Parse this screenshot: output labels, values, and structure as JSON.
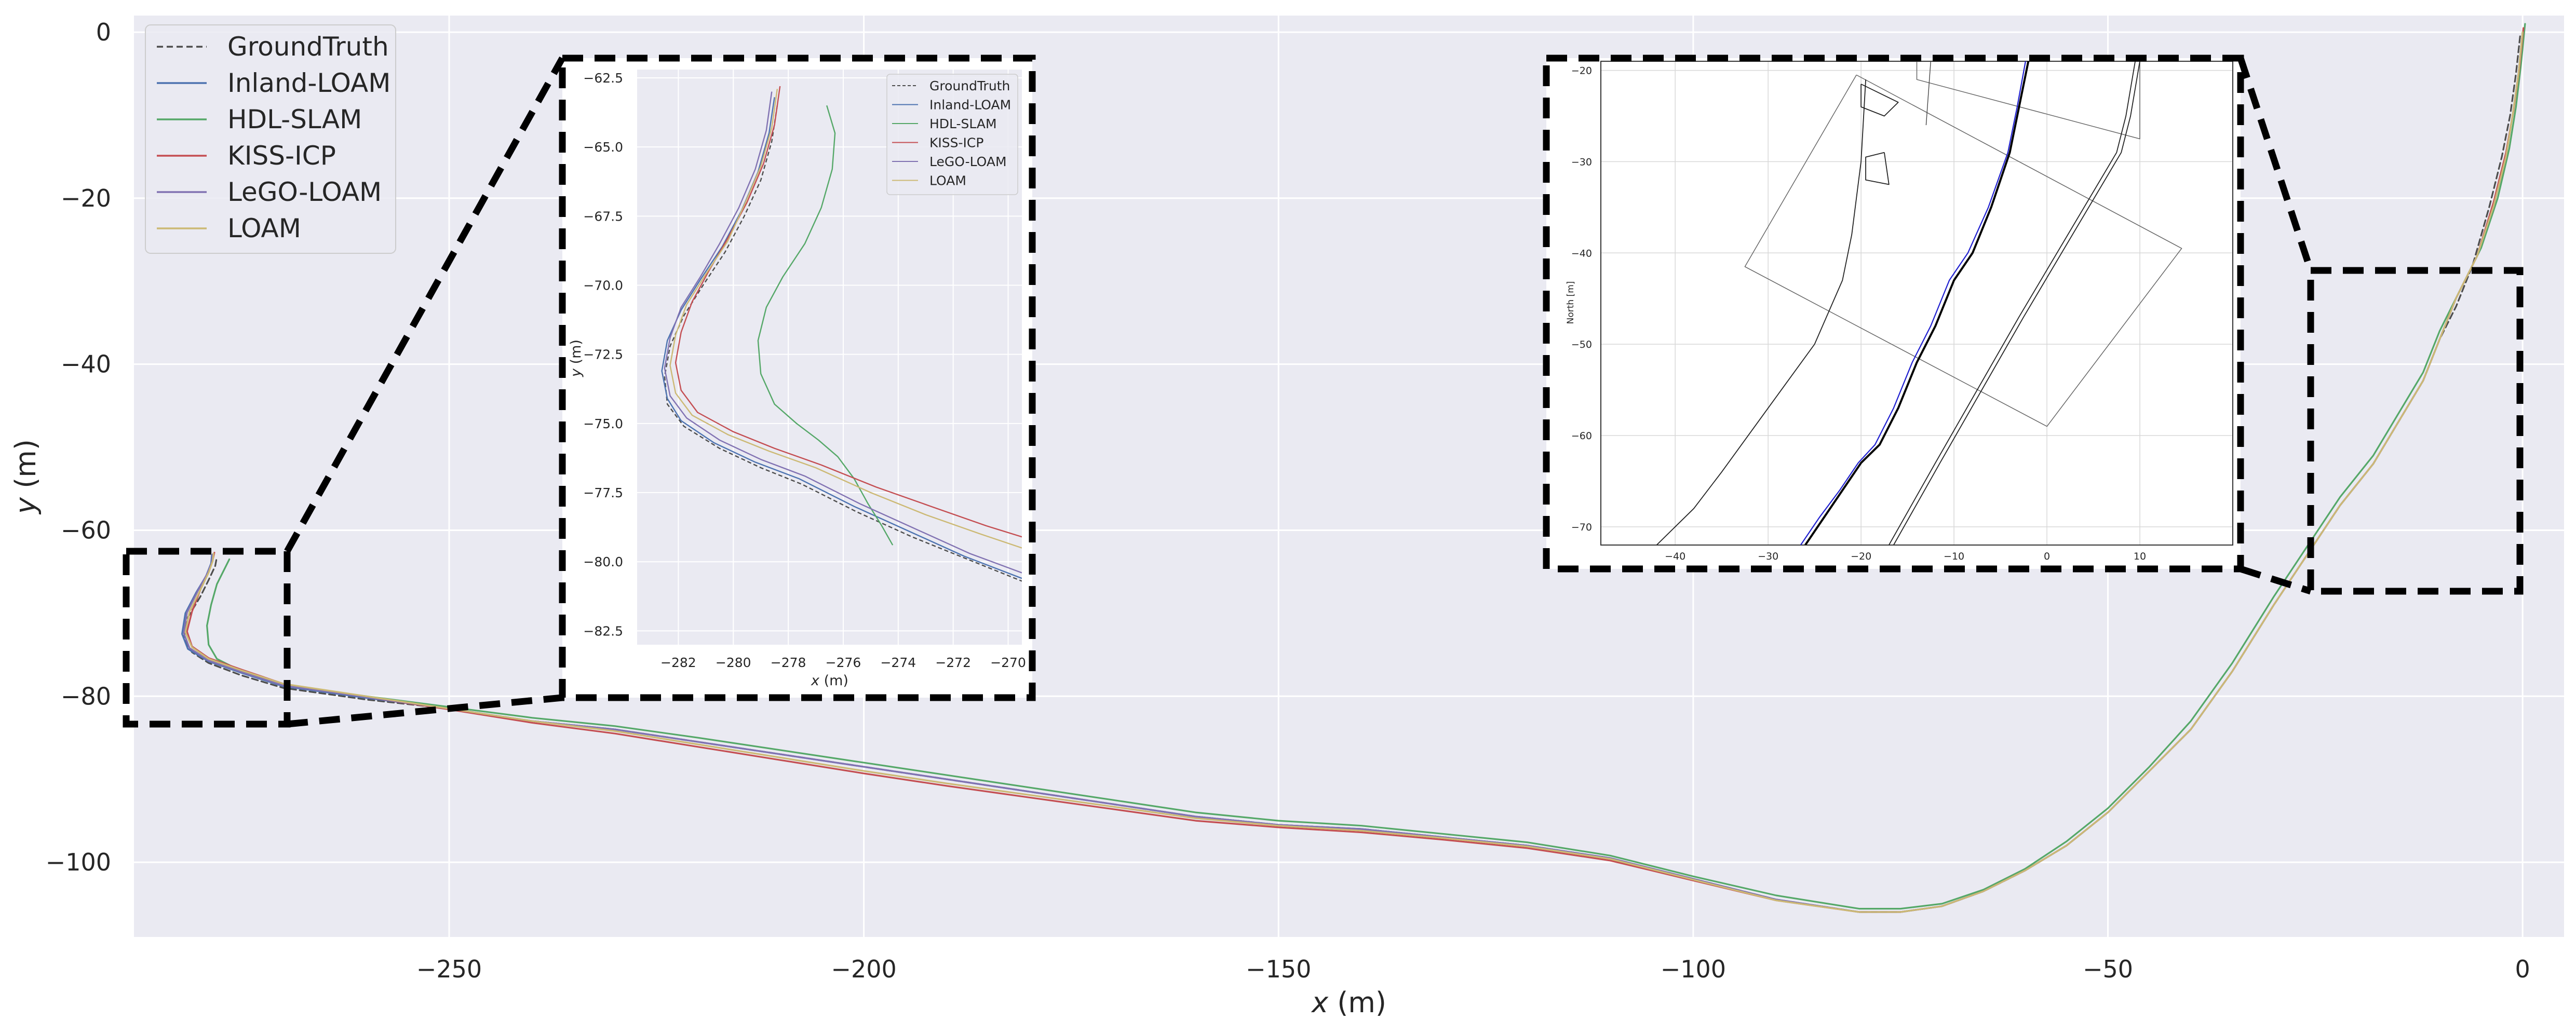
{
  "chart_data": {
    "type": "line",
    "xlabel": "x (m)",
    "ylabel": "y (m)",
    "xlim": [
      -288,
      5
    ],
    "ylim": [
      -109,
      2
    ],
    "grid": true,
    "legend_position": "top-left",
    "xticks": [
      -250,
      -200,
      -150,
      -100,
      -50,
      0
    ],
    "xtick_labels": [
      "−250",
      "−200",
      "−150",
      "−100",
      "−50",
      "0"
    ],
    "yticks": [
      0,
      -20,
      -40,
      -60,
      -80,
      -100
    ],
    "ytick_labels": [
      "0",
      "−20",
      "−40",
      "−60",
      "−80",
      "−100"
    ],
    "series": [
      {
        "name": "GroundTruth",
        "color": "#4d4d4d",
        "dashed": true,
        "x": [
          -0.3,
          -0.8,
          -1.5,
          -2.5,
          -4,
          -6,
          -8,
          -10,
          -12,
          -15,
          -18,
          -22,
          -26,
          -30,
          -35,
          -40,
          -45,
          -50,
          -55,
          -60,
          -65,
          -70,
          -75,
          -80,
          -90,
          -100,
          -110,
          -120,
          -130,
          -140,
          -150,
          -160,
          -170,
          -180,
          -190,
          -200,
          -210,
          -220,
          -230,
          -240,
          -250,
          -260,
          -270,
          -275,
          -279,
          -281,
          -282,
          -281.5,
          -280,
          -279,
          -278.2,
          -278
        ],
        "y": [
          -0.5,
          -5,
          -10,
          -15,
          -21,
          -28,
          -33,
          -37,
          -42,
          -47,
          -52,
          -57,
          -63,
          -69,
          -77,
          -84,
          -89,
          -94,
          -98,
          -101,
          -103.5,
          -105.3,
          -106,
          -106,
          -104.5,
          -102,
          -99.5,
          -98,
          -97,
          -96,
          -95.5,
          -94.5,
          -93,
          -91.5,
          -90,
          -88.5,
          -87,
          -85.5,
          -84,
          -83,
          -81.5,
          -80.4,
          -79,
          -77.5,
          -76,
          -74.7,
          -73,
          -70.5,
          -68,
          -66,
          -64.3,
          -63.2
        ]
      },
      {
        "name": "Inland-LOAM",
        "color": "#4c72b0",
        "x": [
          0,
          -0.5,
          -1.2,
          -2,
          -3.5,
          -5.5,
          -8,
          -10,
          -12,
          -15,
          -18,
          -22,
          -26,
          -30,
          -35,
          -40,
          -45,
          -50,
          -55,
          -60,
          -65,
          -70,
          -75,
          -80,
          -90,
          -100,
          -110,
          -120,
          -130,
          -140,
          -150,
          -160,
          -170,
          -180,
          -190,
          -200,
          -210,
          -220,
          -230,
          -240,
          -250,
          -260,
          -270,
          -275,
          -279,
          -281.5,
          -282.2,
          -281.8,
          -280.5,
          -279.3,
          -278.7,
          -278.6
        ],
        "y": [
          0,
          -5,
          -10,
          -15,
          -21,
          -27,
          -32,
          -37,
          -42,
          -47,
          -52,
          -57,
          -63,
          -69,
          -77,
          -84,
          -89,
          -94,
          -98,
          -101,
          -103.5,
          -105.3,
          -106,
          -106,
          -104.5,
          -102,
          -99.5,
          -98,
          -97,
          -96,
          -95.5,
          -94.5,
          -93,
          -91.5,
          -90,
          -88.5,
          -87,
          -85.5,
          -84,
          -83,
          -81.5,
          -80.2,
          -78.8,
          -77.2,
          -75.8,
          -74.3,
          -72.5,
          -70,
          -67.5,
          -65.5,
          -64,
          -63
        ]
      },
      {
        "name": "HDL-SLAM",
        "color": "#55a868",
        "x": [
          0.3,
          -0.2,
          -0.8,
          -1.6,
          -3,
          -5,
          -7.5,
          -10,
          -12,
          -15,
          -18,
          -22,
          -26,
          -30,
          -35,
          -40,
          -45,
          -50,
          -55,
          -60,
          -65,
          -70,
          -75,
          -80,
          -90,
          -100,
          -110,
          -120,
          -130,
          -140,
          -150,
          -160,
          -170,
          -180,
          -190,
          -200,
          -210,
          -220,
          -230,
          -240,
          -250,
          -260,
          -270,
          -275,
          -278,
          -279,
          -279.2,
          -278.7,
          -278,
          -277,
          -276.5
        ],
        "y": [
          1,
          -4,
          -9,
          -14,
          -20,
          -26,
          -31,
          -36,
          -41,
          -46,
          -51,
          -56,
          -62,
          -68,
          -76,
          -83,
          -88.5,
          -93.5,
          -97.5,
          -100.8,
          -103.3,
          -105,
          -105.6,
          -105.6,
          -104,
          -101.7,
          -99.2,
          -97.6,
          -96.6,
          -95.6,
          -95,
          -94,
          -92.5,
          -91,
          -89.5,
          -88,
          -86.5,
          -85,
          -83.6,
          -82.6,
          -81.3,
          -80,
          -78.6,
          -77,
          -75.5,
          -73.8,
          -71.5,
          -69,
          -66.5,
          -64.5,
          -63.5
        ]
      },
      {
        "name": "KISS-ICP",
        "color": "#c44e52",
        "x": [
          0.1,
          -0.4,
          -1.1,
          -2,
          -3.5,
          -5.5,
          -8,
          -10,
          -12,
          -15,
          -18,
          -22,
          -26,
          -30,
          -35,
          -40,
          -45,
          -50,
          -55,
          -60,
          -65,
          -70,
          -75,
          -80,
          -90,
          -100,
          -110,
          -120,
          -130,
          -140,
          -150,
          -160,
          -170,
          -180,
          -190,
          -200,
          -210,
          -220,
          -230,
          -240,
          -250,
          -260,
          -270,
          -275,
          -279,
          -281,
          -281.6,
          -281,
          -280,
          -279,
          -278.5,
          -278.3
        ],
        "y": [
          0.5,
          -4.5,
          -9.5,
          -14.5,
          -20.5,
          -27,
          -32,
          -37,
          -42,
          -47,
          -52,
          -57,
          -63,
          -69,
          -77,
          -84,
          -89,
          -94,
          -98,
          -101,
          -103.5,
          -105.3,
          -106,
          -106,
          -104.6,
          -102.2,
          -99.8,
          -98.3,
          -97.3,
          -96.4,
          -95.8,
          -95,
          -93.6,
          -92.2,
          -90.8,
          -89.3,
          -87.7,
          -86.1,
          -84.5,
          -83.2,
          -81.6,
          -80.1,
          -78.5,
          -76.8,
          -75.4,
          -74,
          -72.2,
          -69.8,
          -67.2,
          -65,
          -63.6,
          -62.7
        ]
      },
      {
        "name": "LeGO-LOAM",
        "color": "#8172b2",
        "x": [
          0,
          -0.5,
          -1.2,
          -2,
          -3.5,
          -5.5,
          -8,
          -10,
          -12,
          -15,
          -18,
          -22,
          -26,
          -30,
          -35,
          -40,
          -45,
          -50,
          -55,
          -60,
          -65,
          -70,
          -75,
          -80,
          -90,
          -100,
          -110,
          -120,
          -130,
          -140,
          -150,
          -160,
          -170,
          -180,
          -190,
          -200,
          -210,
          -220,
          -230,
          -240,
          -250,
          -260,
          -270,
          -275,
          -279,
          -281.3,
          -282,
          -281.6,
          -280.3,
          -279.2,
          -278.6,
          -278.5
        ],
        "y": [
          0,
          -5,
          -10,
          -15,
          -21,
          -27,
          -32,
          -37,
          -42,
          -47,
          -52,
          -57,
          -63,
          -69,
          -77,
          -84,
          -89,
          -94,
          -98,
          -101,
          -103.5,
          -105.3,
          -106,
          -106,
          -104.5,
          -102,
          -99.5,
          -98,
          -97,
          -96,
          -95.5,
          -94.5,
          -93,
          -91.5,
          -90,
          -88.5,
          -87,
          -85.5,
          -84,
          -83,
          -81.5,
          -80.1,
          -78.7,
          -77.1,
          -75.7,
          -74.2,
          -72.4,
          -69.9,
          -67.3,
          -65.3,
          -63.9,
          -62.9
        ]
      },
      {
        "name": "LOAM",
        "color": "#ccb974",
        "x": [
          0,
          -0.5,
          -1.2,
          -2,
          -3.5,
          -5.5,
          -8,
          -10,
          -12,
          -15,
          -18,
          -22,
          -26,
          -30,
          -35,
          -40,
          -45,
          -50,
          -55,
          -60,
          -65,
          -70,
          -75,
          -80,
          -90,
          -100,
          -110,
          -120,
          -130,
          -140,
          -150,
          -160,
          -170,
          -180,
          -190,
          -200,
          -210,
          -220,
          -230,
          -240,
          -250,
          -260,
          -270,
          -275,
          -279,
          -281,
          -281.8,
          -281.3,
          -280,
          -279,
          -278.5,
          -278.4
        ],
        "y": [
          0,
          -5,
          -10,
          -15,
          -21,
          -27,
          -32,
          -37,
          -42,
          -47,
          -52,
          -57,
          -63,
          -69,
          -77,
          -84,
          -89,
          -94,
          -98,
          -101,
          -103.5,
          -105.3,
          -106,
          -106,
          -104.6,
          -102.1,
          -99.6,
          -98.1,
          -97.1,
          -96.2,
          -95.6,
          -94.7,
          -93.3,
          -91.9,
          -90.5,
          -89,
          -87.4,
          -85.8,
          -84.2,
          -83,
          -81.5,
          -80,
          -78.5,
          -76.9,
          -75.5,
          -74.1,
          -72.3,
          -69.8,
          -67.2,
          -65.1,
          -63.7,
          -62.8
        ]
      }
    ],
    "inset": {
      "xlabel": "x (m)",
      "ylabel": "y (m)",
      "xlim": [
        -283.5,
        -269.5
      ],
      "ylim": [
        -83,
        -62.2
      ],
      "xticks": [
        -282,
        -280,
        -278,
        -276,
        -274,
        -272,
        -270
      ],
      "xtick_labels": [
        "−282",
        "−280",
        "−278",
        "−276",
        "−274",
        "−272",
        "−270"
      ],
      "yticks": [
        -62.5,
        -65.0,
        -67.5,
        -70.0,
        -72.5,
        -75.0,
        -77.5,
        -80.0,
        -82.5
      ],
      "ytick_labels": [
        "−62.5",
        "−65.0",
        "−67.5",
        "−70.0",
        "−72.5",
        "−75.0",
        "−77.5",
        "−80.0",
        "−82.5"
      ],
      "legend": [
        "GroundTruth",
        "Inland-LOAM",
        "HDL-SLAM",
        "KISS-ICP",
        "LeGO-LOAM",
        "LOAM"
      ],
      "series": [
        {
          "name": "GroundTruth",
          "color": "#4d4d4d",
          "dashed": true,
          "x": [
            -278.4,
            -278.6,
            -279,
            -279.6,
            -280.3,
            -281.1,
            -281.8,
            -282.3,
            -282.5,
            -282.4,
            -281.8,
            -280.5,
            -279,
            -277.5,
            -275.5,
            -273.5,
            -271.5,
            -269.5
          ],
          "y": [
            -63.5,
            -64.8,
            -66.2,
            -67.5,
            -68.8,
            -70,
            -71.1,
            -72.2,
            -73.3,
            -74.3,
            -75.1,
            -75.9,
            -76.6,
            -77.2,
            -78.2,
            -79.1,
            -79.9,
            -80.7
          ]
        },
        {
          "name": "Inland-LOAM",
          "color": "#4c72b0",
          "x": [
            -278.5,
            -278.7,
            -279.1,
            -279.7,
            -280.4,
            -281.2,
            -281.9,
            -282.4,
            -282.6,
            -282.4,
            -281.9,
            -280.7,
            -279.2,
            -277.6,
            -275.6,
            -273.6,
            -271.6,
            -269.5
          ],
          "y": [
            -63.2,
            -64.5,
            -65.9,
            -67.3,
            -68.6,
            -69.8,
            -70.9,
            -72,
            -73.1,
            -74.1,
            -74.9,
            -75.7,
            -76.4,
            -77,
            -78,
            -78.9,
            -79.8,
            -80.6
          ]
        },
        {
          "name": "HDL-SLAM",
          "color": "#55a868",
          "x": [
            -276.6,
            -276.3,
            -276.4,
            -276.8,
            -277.4,
            -278.2,
            -278.8,
            -279.1,
            -279,
            -278.5,
            -277.7,
            -276.9,
            -276.2,
            -275.6,
            -275.1,
            -274.6,
            -274.2
          ],
          "y": [
            -63.5,
            -64.5,
            -65.8,
            -67.2,
            -68.5,
            -69.7,
            -70.8,
            -72,
            -73.2,
            -74.3,
            -75,
            -75.6,
            -76.2,
            -77,
            -77.9,
            -78.7,
            -79.4
          ]
        },
        {
          "name": "KISS-ICP",
          "color": "#c44e52",
          "x": [
            -278.3,
            -278.5,
            -278.9,
            -279.5,
            -280.2,
            -280.9,
            -281.5,
            -281.9,
            -282.1,
            -281.9,
            -281.3,
            -280,
            -278.5,
            -276.8,
            -274.8,
            -272.8,
            -270.8,
            -269.5
          ],
          "y": [
            -62.8,
            -64.2,
            -65.6,
            -67,
            -68.3,
            -69.5,
            -70.6,
            -71.7,
            -72.8,
            -73.8,
            -74.6,
            -75.3,
            -75.9,
            -76.5,
            -77.3,
            -78,
            -78.7,
            -79.1
          ]
        },
        {
          "name": "LeGO-LOAM",
          "color": "#8172b2",
          "x": [
            -278.6,
            -278.8,
            -279.2,
            -279.8,
            -280.5,
            -281.2,
            -281.9,
            -282.3,
            -282.5,
            -282.3,
            -281.7,
            -280.5,
            -279,
            -277.4,
            -275.4,
            -273.4,
            -271.4,
            -269.5
          ],
          "y": [
            -63,
            -64.4,
            -65.8,
            -67.2,
            -68.5,
            -69.7,
            -70.8,
            -71.9,
            -73,
            -74,
            -74.8,
            -75.6,
            -76.3,
            -76.9,
            -77.9,
            -78.8,
            -79.7,
            -80.4
          ]
        },
        {
          "name": "LOAM",
          "color": "#ccb974",
          "x": [
            -278.4,
            -278.6,
            -279,
            -279.6,
            -280.2,
            -281,
            -281.7,
            -282.1,
            -282.3,
            -282.1,
            -281.5,
            -280.2,
            -278.7,
            -277,
            -275,
            -273,
            -271,
            -269.5
          ],
          "y": [
            -62.9,
            -64.3,
            -65.7,
            -67.1,
            -68.4,
            -69.6,
            -70.7,
            -71.8,
            -72.9,
            -73.9,
            -74.7,
            -75.4,
            -76,
            -76.6,
            -77.5,
            -78.3,
            -79,
            -79.5
          ]
        }
      ]
    },
    "map_inset": {
      "ylabel": "North [m]",
      "xlim": [
        -48,
        20
      ],
      "ylim": [
        -72,
        -19
      ],
      "xticks": [
        -40,
        -30,
        -20,
        -10,
        0,
        10
      ],
      "xtick_labels": [
        "−40",
        "−30",
        "−20",
        "−10",
        "0",
        "10"
      ],
      "yticks": [
        -20,
        -30,
        -40,
        -50,
        -60,
        -70
      ],
      "ytick_labels": [
        "−20",
        "−30",
        "−40",
        "−50",
        "−60",
        "−70"
      ]
    }
  }
}
